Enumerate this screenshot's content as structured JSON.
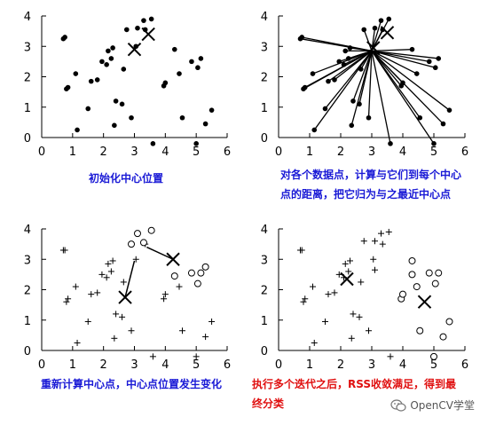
{
  "chart_data": [
    {
      "type": "scatter",
      "title": "",
      "xlim": [
        0,
        6
      ],
      "ylim": [
        0,
        4
      ],
      "x_ticks": [
        "0",
        "1",
        "2",
        "3",
        "4",
        "5",
        "6"
      ],
      "y_ticks": [
        "0",
        "1",
        "2",
        "3",
        "4"
      ],
      "caption": [
        "初始化中心位置"
      ],
      "caption_color": "#1a1ad6",
      "points_dot": [
        [
          0.7,
          3.25
        ],
        [
          0.75,
          3.3
        ],
        [
          0.8,
          1.6
        ],
        [
          0.85,
          1.65
        ],
        [
          1.1,
          2.1
        ],
        [
          1.15,
          0.25
        ],
        [
          1.5,
          0.95
        ],
        [
          1.6,
          1.85
        ],
        [
          1.8,
          1.9
        ],
        [
          1.95,
          2.5
        ],
        [
          2.1,
          2.4
        ],
        [
          2.15,
          2.85
        ],
        [
          2.25,
          2.6
        ],
        [
          2.3,
          2.95
        ],
        [
          2.35,
          0.4
        ],
        [
          2.4,
          1.2
        ],
        [
          2.6,
          1.1
        ],
        [
          2.65,
          2.25
        ],
        [
          2.75,
          3.55
        ],
        [
          2.9,
          0.65
        ],
        [
          3.05,
          3.0
        ],
        [
          3.1,
          3.6
        ],
        [
          3.3,
          3.85
        ],
        [
          3.35,
          3.55
        ],
        [
          3.55,
          3.9
        ],
        [
          3.6,
          -0.2
        ],
        [
          3.95,
          1.7
        ],
        [
          4.0,
          1.8
        ],
        [
          4.3,
          2.9
        ],
        [
          4.45,
          2.1
        ],
        [
          4.55,
          0.65
        ],
        [
          4.85,
          2.5
        ],
        [
          5.0,
          -0.2
        ],
        [
          5.05,
          2.3
        ],
        [
          5.15,
          2.6
        ],
        [
          5.3,
          0.45
        ],
        [
          5.5,
          0.9
        ]
      ],
      "centers": [
        [
          3.0,
          2.9
        ],
        [
          3.45,
          3.4
        ]
      ]
    },
    {
      "type": "scatter",
      "title": "",
      "xlim": [
        0,
        6
      ],
      "ylim": [
        0,
        4
      ],
      "x_ticks": [
        "0",
        "1",
        "2",
        "3",
        "4",
        "5",
        "6"
      ],
      "y_ticks": [
        "0",
        "1",
        "2",
        "3",
        "4"
      ],
      "caption": [
        "对各个数据点，计算与它们到每个中心",
        "点的距离，把它归为与之最近中心点"
      ],
      "caption_color": "#1a1ad6",
      "hub": [
        3.0,
        2.85
      ],
      "points_dot": [
        [
          0.7,
          3.25
        ],
        [
          0.75,
          3.3
        ],
        [
          0.8,
          1.6
        ],
        [
          0.85,
          1.65
        ],
        [
          1.1,
          2.1
        ],
        [
          1.15,
          0.25
        ],
        [
          1.5,
          0.95
        ],
        [
          1.6,
          1.85
        ],
        [
          1.8,
          1.9
        ],
        [
          1.95,
          2.5
        ],
        [
          2.1,
          2.4
        ],
        [
          2.15,
          2.85
        ],
        [
          2.25,
          2.6
        ],
        [
          2.3,
          2.95
        ],
        [
          2.35,
          0.4
        ],
        [
          2.4,
          1.2
        ],
        [
          2.6,
          1.1
        ],
        [
          2.65,
          2.25
        ],
        [
          2.75,
          3.55
        ],
        [
          2.9,
          0.65
        ],
        [
          3.1,
          3.6
        ],
        [
          3.3,
          3.85
        ],
        [
          3.35,
          3.55
        ],
        [
          3.55,
          3.9
        ],
        [
          3.6,
          -0.2
        ],
        [
          3.95,
          1.7
        ],
        [
          4.0,
          1.8
        ],
        [
          4.3,
          2.9
        ],
        [
          4.45,
          2.1
        ],
        [
          4.55,
          0.65
        ],
        [
          4.85,
          2.5
        ],
        [
          5.0,
          -0.2
        ],
        [
          5.05,
          2.3
        ],
        [
          5.15,
          2.6
        ],
        [
          5.3,
          0.45
        ],
        [
          5.5,
          0.9
        ]
      ],
      "centers": [
        [
          3.05,
          2.95
        ],
        [
          3.5,
          3.45
        ]
      ]
    },
    {
      "type": "scatter",
      "title": "",
      "xlim": [
        0,
        6
      ],
      "ylim": [
        0,
        4
      ],
      "x_ticks": [
        "0",
        "1",
        "2",
        "3",
        "4",
        "5",
        "6"
      ],
      "y_ticks": [
        "0",
        "1",
        "2",
        "3",
        "4"
      ],
      "caption": [
        "重新计算中心点，中心点位置发生变化"
      ],
      "caption_color": "#1a1ad6",
      "points_plus": [
        [
          0.7,
          3.3
        ],
        [
          0.75,
          3.3
        ],
        [
          0.8,
          1.6
        ],
        [
          0.85,
          1.7
        ],
        [
          1.1,
          2.1
        ],
        [
          1.15,
          0.25
        ],
        [
          1.5,
          0.95
        ],
        [
          1.6,
          1.85
        ],
        [
          1.8,
          1.9
        ],
        [
          1.95,
          2.5
        ],
        [
          2.1,
          2.4
        ],
        [
          2.15,
          2.85
        ],
        [
          2.25,
          2.6
        ],
        [
          2.3,
          2.95
        ],
        [
          2.35,
          0.4
        ],
        [
          2.4,
          1.2
        ],
        [
          2.6,
          1.1
        ],
        [
          2.65,
          2.25
        ],
        [
          2.9,
          0.65
        ],
        [
          3.05,
          3.0
        ],
        [
          3.35,
          3.5
        ],
        [
          3.95,
          1.7
        ],
        [
          4.0,
          1.85
        ],
        [
          4.45,
          2.1
        ],
        [
          4.55,
          0.65
        ],
        [
          5.3,
          0.45
        ],
        [
          5.5,
          0.95
        ],
        [
          3.6,
          -0.2
        ],
        [
          5.0,
          -0.2
        ]
      ],
      "points_circle": [
        [
          2.9,
          3.5
        ],
        [
          3.1,
          3.85
        ],
        [
          3.3,
          3.55
        ],
        [
          3.55,
          3.95
        ],
        [
          4.3,
          2.45
        ],
        [
          4.85,
          2.55
        ],
        [
          5.05,
          2.2
        ],
        [
          5.15,
          2.55
        ],
        [
          5.3,
          2.75
        ]
      ],
      "centers": [
        [
          2.7,
          1.75
        ],
        [
          4.25,
          3.0
        ]
      ],
      "old_centers": [
        [
          3.0,
          2.9
        ],
        [
          3.45,
          3.4
        ]
      ]
    },
    {
      "type": "scatter",
      "title": "",
      "xlim": [
        0,
        6
      ],
      "ylim": [
        0,
        4
      ],
      "x_ticks": [
        "0",
        "1",
        "2",
        "3",
        "4",
        "5",
        "6"
      ],
      "y_ticks": [
        "0",
        "1",
        "2",
        "3",
        "4"
      ],
      "caption": [
        "执行多个迭代之后，RSS收敛满足，得到最",
        "终分类"
      ],
      "caption_color": "#e01010",
      "points_plus": [
        [
          0.7,
          3.3
        ],
        [
          0.75,
          3.3
        ],
        [
          0.8,
          1.6
        ],
        [
          0.85,
          1.7
        ],
        [
          1.1,
          2.1
        ],
        [
          1.15,
          0.25
        ],
        [
          1.5,
          0.95
        ],
        [
          1.6,
          1.85
        ],
        [
          1.8,
          1.9
        ],
        [
          1.95,
          2.5
        ],
        [
          2.1,
          2.4
        ],
        [
          2.15,
          2.85
        ],
        [
          2.25,
          2.6
        ],
        [
          2.3,
          2.95
        ],
        [
          2.35,
          0.4
        ],
        [
          2.4,
          1.2
        ],
        [
          2.6,
          1.1
        ],
        [
          2.65,
          2.25
        ],
        [
          2.75,
          3.6
        ],
        [
          2.9,
          0.65
        ],
        [
          3.05,
          3.0
        ],
        [
          3.1,
          3.6
        ],
        [
          3.3,
          3.85
        ],
        [
          3.35,
          3.5
        ],
        [
          3.55,
          3.9
        ],
        [
          3.6,
          -0.2
        ],
        [
          3.1,
          2.65
        ]
      ],
      "points_circle": [
        [
          3.95,
          1.7
        ],
        [
          4.0,
          1.85
        ],
        [
          4.3,
          2.95
        ],
        [
          4.45,
          2.1
        ],
        [
          4.55,
          0.65
        ],
        [
          4.85,
          2.55
        ],
        [
          5.05,
          2.2
        ],
        [
          5.15,
          2.55
        ],
        [
          5.3,
          0.45
        ],
        [
          5.5,
          0.95
        ],
        [
          4.3,
          2.5
        ],
        [
          5.0,
          -0.2
        ]
      ],
      "centers": [
        [
          2.2,
          2.35
        ],
        [
          4.7,
          1.6
        ]
      ]
    }
  ],
  "watermark": {
    "text": "OpenCV学堂",
    "icon": "wechat-icon"
  }
}
